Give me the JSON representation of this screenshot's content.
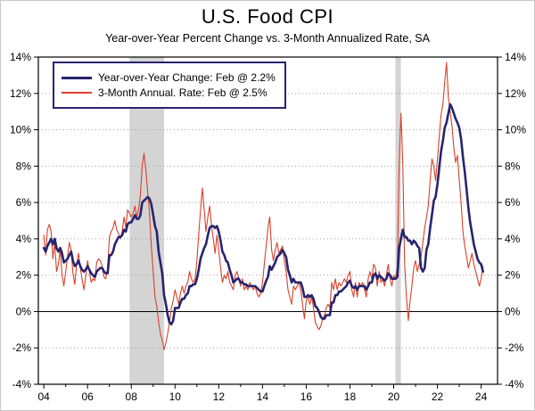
{
  "page": {
    "title": "U.S. Food CPI",
    "subtitle": "Year-over-Year Percent Change vs. 3-Month Annualized Rate, SA"
  },
  "legend": {
    "border_color": "#26246e",
    "items": [
      {
        "label": "Year-over-Year Change: Feb @ 2.2%",
        "color": "#26246e",
        "thickness": 3
      },
      {
        "label": "3-Month Annual. Rate: Feb @ 2.5%",
        "color": "#d9402a",
        "thickness": 1.5
      }
    ]
  },
  "chart_data": {
    "type": "line",
    "title": "U.S. Food CPI",
    "subtitle": "Year-over-Year Percent Change vs. 3-Month Annualized Rate, SA",
    "x_start": 2004.0,
    "x_step_months": 1,
    "xlim": [
      2003.75,
      2024.75
    ],
    "ylim": [
      -4,
      14
    ],
    "yticks": [
      -4,
      -2,
      0,
      2,
      4,
      6,
      8,
      10,
      12,
      14
    ],
    "ytick_labels": [
      "-4%",
      "-2%",
      "0%",
      "2%",
      "4%",
      "6%",
      "8%",
      "10%",
      "12%",
      "14%"
    ],
    "xticks": [
      2004,
      2006,
      2008,
      2010,
      2012,
      2014,
      2016,
      2018,
      2020,
      2022,
      2024
    ],
    "xtick_labels": [
      "04",
      "06",
      "08",
      "10",
      "12",
      "14",
      "16",
      "18",
      "20",
      "22",
      "24"
    ],
    "grid": "dotted-horizontal",
    "zero_line": true,
    "legend_position": "top-left-inside",
    "recession_color": "#d4d4d4",
    "recession_bands": [
      [
        2007.92,
        2009.5
      ],
      [
        2020.08,
        2020.33
      ]
    ],
    "series": [
      {
        "id": "yoy",
        "name": "Year-over-Year Change",
        "latest": "Feb @ 2.2%",
        "color": "#26246e",
        "width": 2.6,
        "values": [
          3.5,
          3.3,
          3.6,
          3.8,
          4.0,
          3.7,
          4.0,
          3.5,
          3.3,
          3.5,
          3.2,
          2.7,
          2.8,
          2.9,
          3.1,
          3.3,
          2.8,
          2.5,
          2.6,
          2.8,
          2.5,
          2.3,
          2.2,
          2.3,
          2.5,
          2.3,
          2.1,
          2.0,
          1.9,
          2.2,
          2.3,
          2.4,
          2.4,
          2.2,
          2.1,
          2.1,
          3.1,
          3.1,
          3.3,
          3.7,
          3.9,
          4.1,
          4.1,
          4.2,
          4.5,
          4.4,
          4.8,
          4.9,
          4.9,
          5.1,
          5.3,
          5.1,
          5.1,
          5.3,
          6.0,
          6.1,
          6.2,
          6.3,
          6.2,
          5.9,
          5.3,
          4.7,
          4.4,
          3.3,
          2.7,
          2.1,
          0.9,
          0.4,
          -0.2,
          -0.6,
          -0.7,
          -0.5,
          0.2,
          0.2,
          0.2,
          0.5,
          0.7,
          0.7,
          0.9,
          1.0,
          1.4,
          1.4,
          1.5,
          1.5,
          1.8,
          2.3,
          2.9,
          3.2,
          3.5,
          3.7,
          4.2,
          4.6,
          4.7,
          4.7,
          4.6,
          4.7,
          4.4,
          3.9,
          3.3,
          3.1,
          2.8,
          2.7,
          2.3,
          2.0,
          1.6,
          1.7,
          1.8,
          1.8,
          1.6,
          1.6,
          1.5,
          1.5,
          1.4,
          1.4,
          1.4,
          1.4,
          1.4,
          1.3,
          1.2,
          1.1,
          1.1,
          1.4,
          1.7,
          1.9,
          2.5,
          2.3,
          2.5,
          2.7,
          3.0,
          3.1,
          3.2,
          3.4,
          3.2,
          3.0,
          2.3,
          2.0,
          1.6,
          1.8,
          1.6,
          1.6,
          1.6,
          1.6,
          1.3,
          0.8,
          0.8,
          0.9,
          0.8,
          0.9,
          0.7,
          0.3,
          0.2,
          0.0,
          -0.3,
          -0.4,
          -0.4,
          -0.2,
          -0.2,
          -0.2,
          0.5,
          0.5,
          0.9,
          0.9,
          1.1,
          1.1,
          1.2,
          1.3,
          1.4,
          1.6,
          1.7,
          1.4,
          1.3,
          1.4,
          1.2,
          1.4,
          1.4,
          1.4,
          1.4,
          1.2,
          1.4,
          1.6,
          1.6,
          2.0,
          2.1,
          1.8,
          2.0,
          1.9,
          1.8,
          1.7,
          1.8,
          2.1,
          2.0,
          1.8,
          1.8,
          1.8,
          1.9,
          3.5,
          4.0,
          4.5,
          4.1,
          4.1,
          3.9,
          3.9,
          3.7,
          3.9,
          3.8,
          3.6,
          3.5,
          2.4,
          2.2,
          2.4,
          3.4,
          3.7,
          4.6,
          5.3,
          6.1,
          6.3,
          7.0,
          7.9,
          8.8,
          9.4,
          10.1,
          10.4,
          10.9,
          11.4,
          11.2,
          10.9,
          10.6,
          10.4,
          10.1,
          9.5,
          8.5,
          7.7,
          6.7,
          5.7,
          4.9,
          4.3,
          3.7,
          3.3,
          2.9,
          2.7,
          2.6,
          2.2
        ]
      },
      {
        "id": "three-month",
        "name": "3-Month Annual. Rate",
        "latest": "Feb @ 2.5%",
        "color": "#d9402a",
        "width": 1.1,
        "values": [
          4.2,
          3.1,
          4.5,
          4.8,
          4.4,
          2.9,
          3.8,
          2.2,
          2.6,
          3.4,
          2.0,
          1.4,
          2.2,
          3.0,
          3.8,
          3.4,
          2.1,
          1.5,
          2.6,
          3.2,
          2.4,
          1.8,
          1.2,
          1.9,
          2.8,
          2.2,
          1.6,
          1.8,
          1.7,
          2.7,
          2.9,
          2.8,
          2.5,
          1.9,
          1.8,
          2.4,
          4.1,
          4.4,
          4.6,
          5.0,
          4.5,
          4.3,
          4.0,
          4.4,
          5.2,
          4.6,
          5.6,
          5.4,
          5.2,
          5.4,
          5.8,
          5.2,
          5.6,
          6.4,
          8.0,
          8.7,
          7.8,
          6.6,
          5.4,
          3.6,
          2.2,
          0.8,
          0.3,
          -0.6,
          -1.2,
          -1.6,
          -2.1,
          -1.7,
          -1.2,
          -0.6,
          0.2,
          0.6,
          1.2,
          0.8,
          0.4,
          1.0,
          1.4,
          1.0,
          1.4,
          1.6,
          2.2,
          1.8,
          1.6,
          1.8,
          2.8,
          4.2,
          5.6,
          6.8,
          5.6,
          4.4,
          5.2,
          5.8,
          4.8,
          4.0,
          3.2,
          4.2,
          3.4,
          2.4,
          1.6,
          2.0,
          1.8,
          2.2,
          1.6,
          1.4,
          1.2,
          2.0,
          2.2,
          1.8,
          1.4,
          1.8,
          1.2,
          1.4,
          1.2,
          1.6,
          1.4,
          1.2,
          1.4,
          1.0,
          0.8,
          1.0,
          1.6,
          2.6,
          3.6,
          4.6,
          5.2,
          3.4,
          2.8,
          3.4,
          3.8,
          3.2,
          3.4,
          3.6,
          2.8,
          2.2,
          1.2,
          0.8,
          0.4,
          1.4,
          1.2,
          1.4,
          1.6,
          1.2,
          0.4,
          -0.4,
          0.6,
          0.8,
          0.4,
          0.8,
          0.2,
          -0.6,
          -0.8,
          -1.0,
          -0.8,
          -0.4,
          -0.2,
          0.2,
          0.4,
          0.2,
          1.6,
          1.2,
          1.8,
          1.2,
          1.6,
          1.4,
          1.6,
          1.8,
          1.6,
          2.0,
          2.2,
          1.2,
          0.8,
          1.6,
          0.8,
          1.6,
          1.4,
          1.6,
          1.2,
          0.8,
          1.8,
          2.2,
          1.8,
          2.6,
          2.4,
          1.4,
          2.2,
          1.6,
          1.8,
          1.4,
          2.0,
          2.6,
          1.8,
          1.4,
          2.0,
          1.8,
          2.4,
          8.0,
          10.9,
          8.2,
          2.6,
          0.8,
          -0.5,
          0.6,
          1.4,
          2.4,
          2.8,
          2.2,
          2.6,
          3.0,
          3.8,
          4.6,
          5.2,
          5.8,
          7.2,
          8.4,
          8.0,
          7.2,
          8.4,
          9.6,
          10.8,
          11.4,
          12.6,
          13.7,
          11.8,
          11.0,
          10.2,
          9.0,
          8.2,
          8.6,
          7.2,
          6.0,
          4.4,
          3.6,
          3.0,
          2.4,
          2.8,
          3.2,
          2.6,
          2.2,
          1.8,
          1.4,
          1.8,
          2.5
        ]
      }
    ]
  }
}
